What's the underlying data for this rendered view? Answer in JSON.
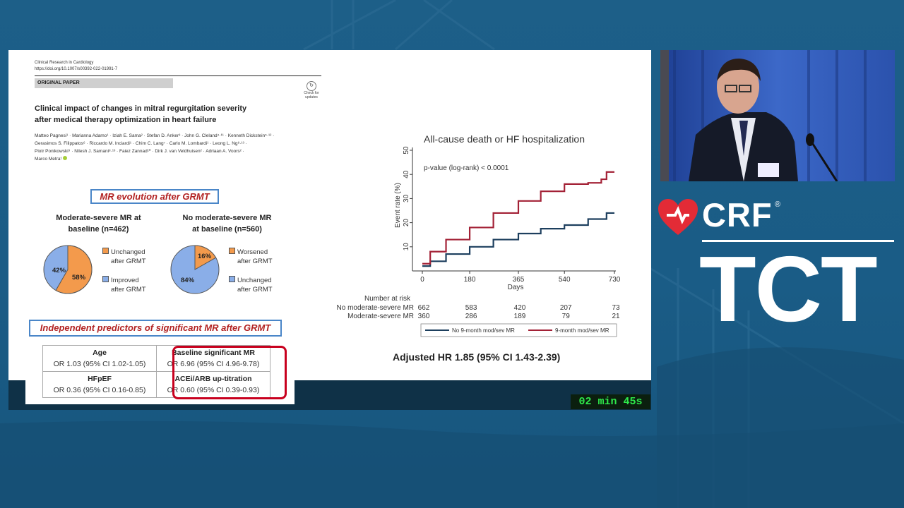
{
  "slide": {
    "paper": {
      "journal": "Clinical Research in Cardiology",
      "doi": "https://doi.org/10.1007/s00392-022-01991-7",
      "paper_type": "ORIGINAL PAPER",
      "check_updates": "Check for updates",
      "title_line1": "Clinical impact of changes in mitral regurgitation severity",
      "title_line2": "after medical therapy optimization in heart failure",
      "authors_line1": "Matteo Pagnesi¹ · Marianna Adamo¹ · Iziah E. Sama² · Stefan D. Anker³ · John G. Cleland⁴·¹¹ · Kenneth Dickstein⁵·¹² ·",
      "authors_line2": "Gerasimos S. Filippatos⁶ · Riccardo M. Inciardi¹ · Chim C. Lang⁷ · Carlo M. Lombardi¹ · Leong L. Ng⁸·¹³ ·",
      "authors_line3": "Piotr Ponikowski⁹ · Nilesh J. Samani⁸·¹³ · Faiez Zannad¹⁰ · Dirk J. van Veldhuisen² · Adriaan A. Voors² ·",
      "authors_line4": "Marco Metra¹"
    },
    "mr_evolution": {
      "heading": "MR evolution after GRMT",
      "group1": {
        "title_line1": "Moderate-severe MR at",
        "title_line2": "baseline (n=462)",
        "slice_a_label": "42%",
        "slice_b_label": "58%",
        "legend_a_1": "Unchanged",
        "legend_a_2": "after GRMT",
        "legend_b_1": "Improved",
        "legend_b_2": "after GRMT"
      },
      "group2": {
        "title_line1": "No moderate-severe MR",
        "title_line2": "at baseline (n=560)",
        "slice_a_label": "16%",
        "slice_b_label": "84%",
        "legend_a_1": "Worsened",
        "legend_a_2": "after GRMT",
        "legend_b_1": "Unchanged",
        "legend_b_2": "after GRMT"
      },
      "colors": {
        "orange": "#f39a4c",
        "blue": "#8aaee8"
      }
    },
    "predictors": {
      "heading": "Independent predictors of significant MR after GRMT",
      "cells": [
        {
          "label": "Age",
          "value": "OR 1.03 (95% CI 1.02-1.05)"
        },
        {
          "label": "Baseline significant MR",
          "value": "OR 6.96 (95% CI 4.96-9.78)"
        },
        {
          "label": "HFpEF",
          "value": "OR 0.36 (95% CI 0.16-0.85)"
        },
        {
          "label": "ACEi/ARB up-titration",
          "value": "OR 0.60 (95% CI 0.39-0.93)"
        }
      ],
      "highlight_color": "#c8001e"
    },
    "km": {
      "title": "All-cause death or HF hospitalization",
      "ylabel": "Event rate (%)",
      "xlabel": "Days",
      "pvalue": "p-value (log-rank) < 0.0001",
      "yticks": [
        "10",
        "20",
        "30",
        "40",
        "50"
      ],
      "xticks": [
        "0",
        "180",
        "365",
        "540",
        "730"
      ],
      "risk_header": "Number at risk",
      "risk_rows": [
        {
          "label": "No moderate-severe MR",
          "values": [
            "662",
            "583",
            "420",
            "207",
            "73"
          ]
        },
        {
          "label": "Moderate-severe MR",
          "values": [
            "360",
            "286",
            "189",
            "79",
            "21"
          ]
        }
      ],
      "legend": [
        "No 9-month mod/sev MR",
        "9-month mod/sev MR"
      ],
      "hr_text": "Adjusted HR 1.85 (95% CI 1.43-2.39)",
      "series_colors": {
        "no_mr": "#1d3f5e",
        "mr": "#a32136"
      }
    }
  },
  "chart_data": {
    "type": "line",
    "title": "All-cause death or HF hospitalization",
    "xlabel": "Days",
    "ylabel": "Event rate (%)",
    "xlim": [
      0,
      730
    ],
    "ylim": [
      0,
      50
    ],
    "series": [
      {
        "name": "No 9-month mod/sev MR",
        "x": [
          0,
          30,
          90,
          180,
          270,
          365,
          450,
          540,
          630,
          700,
          730
        ],
        "values": [
          2,
          4,
          7,
          10,
          13,
          15.5,
          17.5,
          19,
          21.5,
          24,
          24
        ]
      },
      {
        "name": "9-month mod/sev MR",
        "x": [
          0,
          30,
          90,
          180,
          270,
          365,
          450,
          540,
          630,
          680,
          700,
          730
        ],
        "values": [
          3,
          8,
          13,
          18,
          24,
          29,
          33,
          36,
          36.5,
          38,
          41,
          41
        ]
      }
    ]
  },
  "timer": "02 min 45s",
  "branding": {
    "crf": "CRF",
    "registered": "®",
    "tct": "TCT"
  }
}
